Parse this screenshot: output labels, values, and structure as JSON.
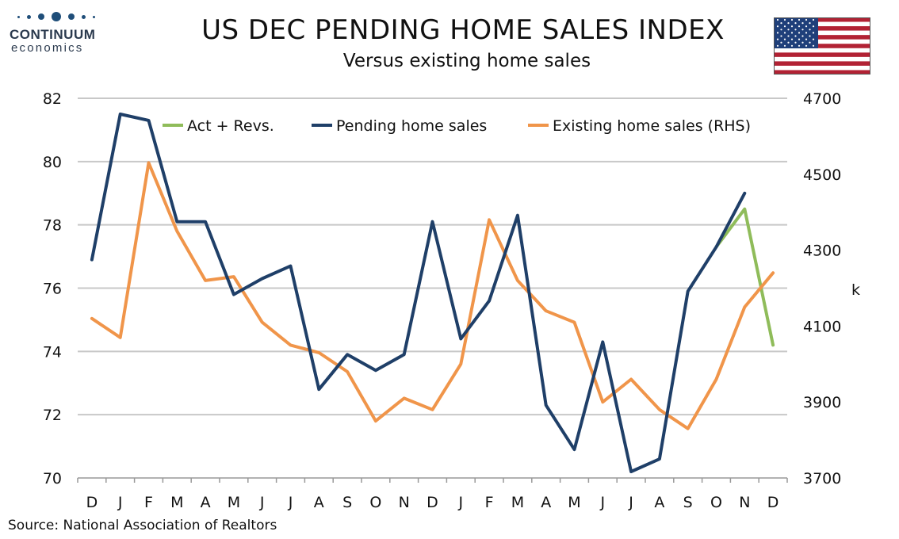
{
  "logo": {
    "name": "CONTINUUM",
    "tagline": "economics"
  },
  "header": {
    "title": "US DEC PENDING HOME SALES INDEX",
    "subtitle": "Versus existing home sales"
  },
  "source": "Source: National Association of Realtors",
  "colors": {
    "pending": "#1f3f68",
    "existing": "#f0954a",
    "revisions": "#8fbc5a",
    "grid": "#c8c8c8",
    "axis": "#999999"
  },
  "chart_data": {
    "type": "line",
    "categories": [
      "D",
      "J",
      "F",
      "M",
      "A",
      "M",
      "J",
      "J",
      "A",
      "S",
      "O",
      "N",
      "D",
      "J",
      "F",
      "M",
      "A",
      "M",
      "J",
      "J",
      "A",
      "S",
      "O",
      "N",
      "D"
    ],
    "y_left": {
      "min": 70,
      "max": 82,
      "ticks": [
        "70",
        "72",
        "74",
        "76",
        "78",
        "80",
        "82"
      ]
    },
    "y_right": {
      "min": 3700,
      "max": 4700,
      "ticks": [
        "3700",
        "3900",
        "4100",
        "4300",
        "4500",
        "4700"
      ],
      "label": "k"
    },
    "grid": "horizontal",
    "legend_position": "top",
    "series": [
      {
        "name": "Act + Revs.",
        "axis": "left",
        "color": "#8fbc5a",
        "values": [
          null,
          null,
          null,
          null,
          null,
          null,
          null,
          null,
          null,
          null,
          null,
          null,
          null,
          null,
          null,
          null,
          null,
          null,
          null,
          null,
          null,
          null,
          77.3,
          78.5,
          74.2
        ]
      },
      {
        "name": "Pending home sales",
        "axis": "left",
        "color": "#1f3f68",
        "values": [
          76.9,
          81.5,
          81.3,
          78.1,
          78.1,
          75.8,
          76.3,
          76.7,
          72.8,
          73.9,
          73.4,
          73.9,
          78.1,
          74.4,
          75.6,
          78.3,
          72.3,
          70.9,
          74.3,
          70.2,
          70.6,
          75.9,
          77.3,
          79.0,
          null
        ]
      },
      {
        "name": "Existing home sales (RHS)",
        "axis": "right",
        "color": "#f0954a",
        "values": [
          4120,
          4070,
          4530,
          4350,
          4220,
          4230,
          4110,
          4050,
          4030,
          3980,
          3850,
          3910,
          3880,
          4000,
          4380,
          4220,
          4140,
          4110,
          3900,
          3960,
          3880,
          3830,
          3960,
          4150,
          4240
        ]
      }
    ]
  }
}
